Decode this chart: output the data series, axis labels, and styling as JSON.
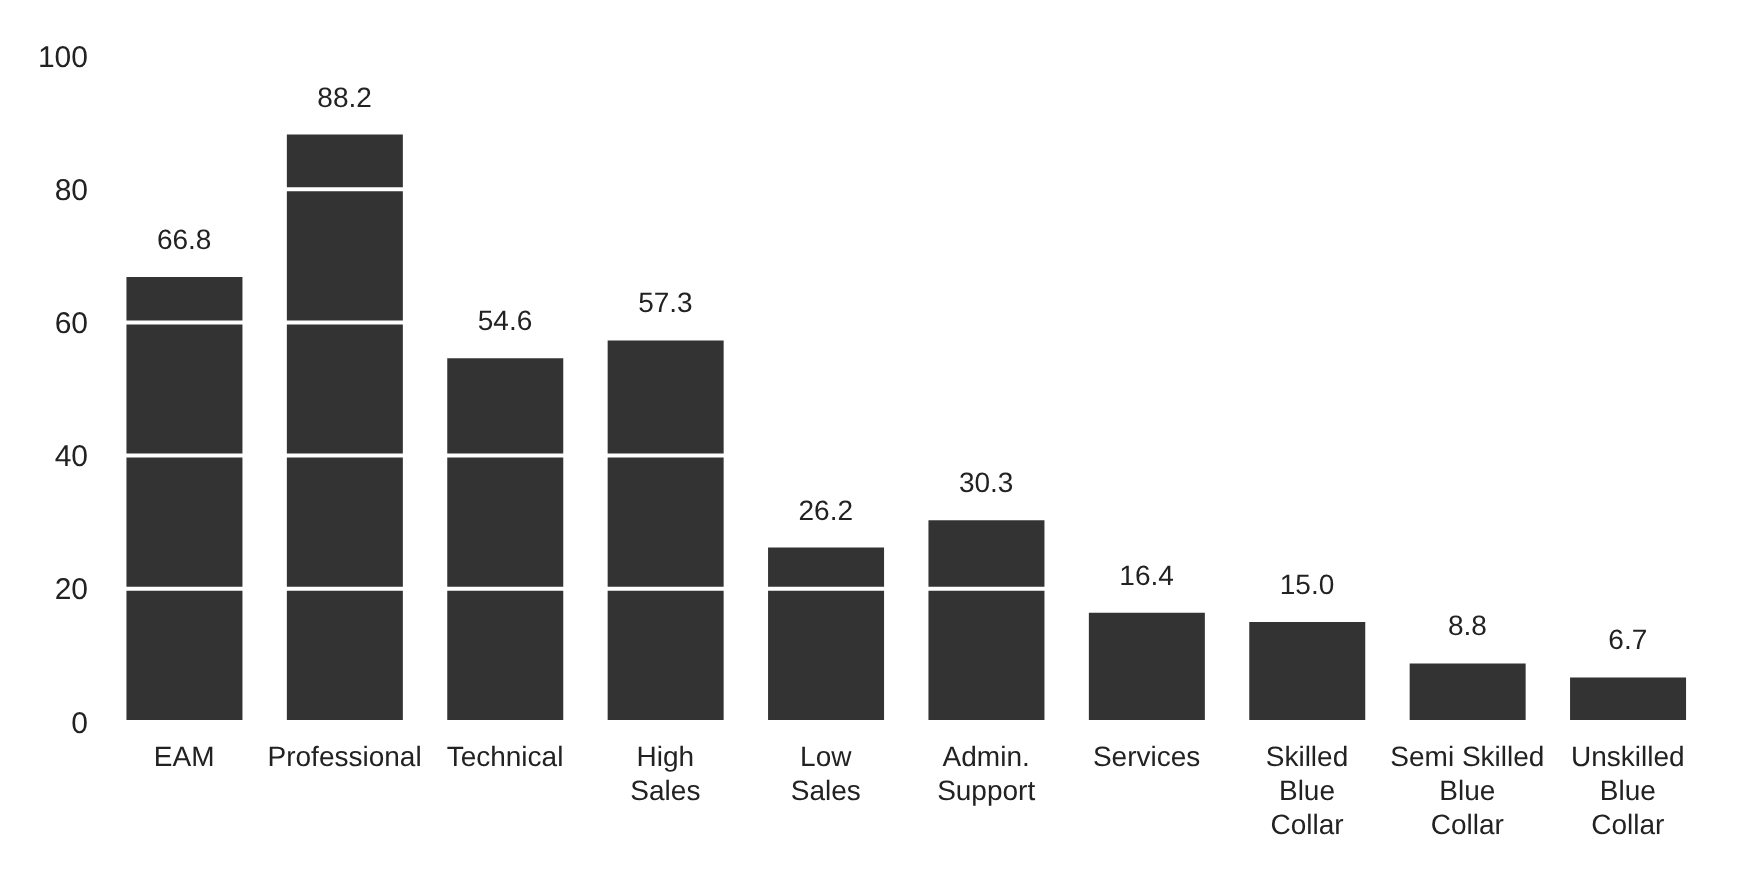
{
  "chart_data": {
    "type": "bar",
    "categories": [
      "EAM",
      "Professional",
      "Technical",
      "High\nSales",
      "Low\nSales",
      "Admin.\nSupport",
      "Services",
      "Skilled\nBlue\nCollar",
      "Semi Skilled\nBlue\nCollar",
      "Unskilled\nBlue\nCollar"
    ],
    "values": [
      66.8,
      88.2,
      54.6,
      57.3,
      26.2,
      30.3,
      16.4,
      15.0,
      8.8,
      6.7
    ],
    "value_labels": [
      "66.8",
      "88.2",
      "54.6",
      "57.3",
      "26.2",
      "30.3",
      "16.4",
      "15.0",
      "8.8",
      "6.7"
    ],
    "color": "#333333",
    "ylim": [
      0,
      100
    ],
    "yticks": [
      0,
      20,
      40,
      60,
      80,
      100
    ],
    "grid": "y"
  }
}
